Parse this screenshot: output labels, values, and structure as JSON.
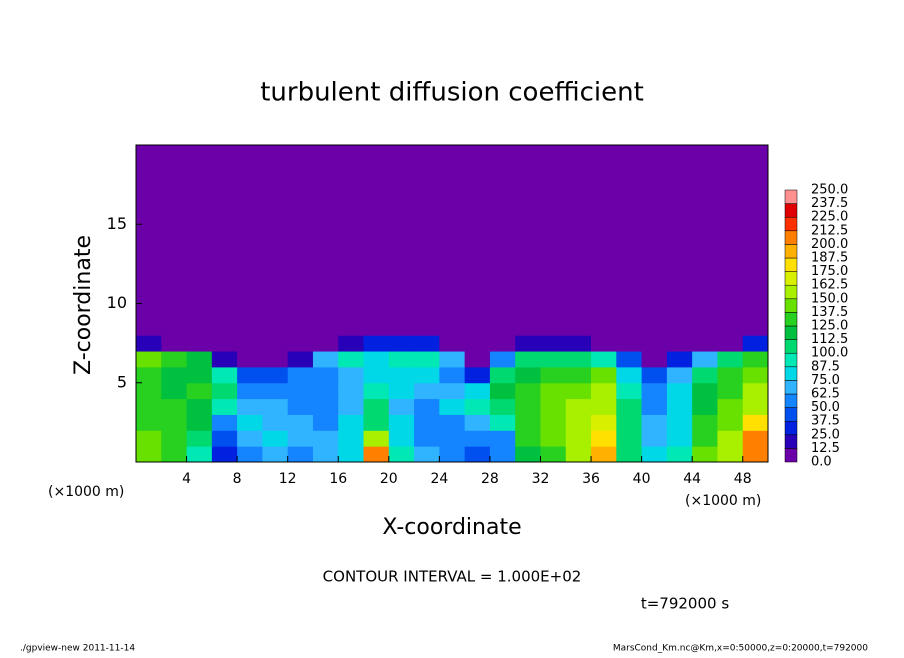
{
  "chart_data": {
    "type": "contour",
    "title": "turbulent diffusion coefficient",
    "x_label": "X-coordinate",
    "y_label": "Z-coordinate",
    "x_unit": "(×1000 m)",
    "xlim": [
      0,
      50
    ],
    "ylim": [
      0,
      20
    ],
    "xticks": [
      4,
      8,
      12,
      16,
      20,
      24,
      28,
      32,
      36,
      40,
      44,
      48
    ],
    "yticks": [
      5,
      10,
      15
    ],
    "x_edges": [
      0,
      2,
      4,
      6,
      8,
      10,
      12,
      14,
      16,
      18,
      20,
      22,
      24,
      26,
      28,
      30,
      32,
      34,
      36,
      38,
      40,
      42,
      44,
      46,
      48,
      50
    ],
    "z_edges": [
      0,
      1,
      2,
      3,
      4,
      5,
      6,
      7,
      8,
      20
    ],
    "z": [
      [
        140,
        130,
        90,
        30,
        60,
        70,
        60,
        70,
        80,
        200,
        90,
        70,
        50,
        40,
        60,
        120,
        130,
        150,
        190,
        110,
        80,
        90,
        140,
        160,
        210
      ],
      [
        140,
        135,
        110,
        40,
        70,
        75,
        70,
        65,
        80,
        150,
        80,
        60,
        50,
        50,
        60,
        125,
        140,
        160,
        175,
        110,
        70,
        80,
        130,
        150,
        200
      ],
      [
        135,
        130,
        120,
        60,
        75,
        70,
        65,
        60,
        75,
        110,
        75,
        55,
        60,
        70,
        90,
        130,
        145,
        160,
        170,
        105,
        65,
        75,
        125,
        145,
        180
      ],
      [
        130,
        125,
        120,
        90,
        70,
        65,
        60,
        55,
        70,
        100,
        70,
        60,
        80,
        90,
        110,
        130,
        140,
        150,
        160,
        100,
        60,
        80,
        120,
        140,
        160
      ],
      [
        130,
        120,
        125,
        110,
        60,
        60,
        55,
        55,
        65,
        90,
        75,
        65,
        70,
        85,
        120,
        130,
        140,
        145,
        150,
        90,
        55,
        85,
        115,
        135,
        150
      ],
      [
        125,
        115,
        120,
        95,
        40,
        45,
        50,
        60,
        70,
        80,
        85,
        80,
        60,
        30,
        100,
        120,
        130,
        135,
        140,
        75,
        45,
        70,
        105,
        125,
        140
      ],
      [
        140,
        130,
        120,
        20,
        5,
        5,
        20,
        70,
        90,
        85,
        95,
        90,
        70,
        10,
        60,
        100,
        105,
        110,
        95,
        40,
        10,
        30,
        70,
        110,
        130
      ],
      [
        20,
        10,
        5,
        0,
        0,
        0,
        0,
        5,
        20,
        30,
        30,
        25,
        10,
        0,
        5,
        15,
        20,
        20,
        10,
        0,
        0,
        0,
        0,
        10,
        30
      ],
      [
        0,
        0,
        0,
        0,
        0,
        0,
        0,
        0,
        0,
        0,
        0,
        0,
        0,
        0,
        0,
        0,
        0,
        0,
        0,
        0,
        0,
        0,
        0,
        0,
        0
      ]
    ],
    "levels": [
      {
        "value": 0,
        "label": "0.0"
      },
      {
        "value": 12.5,
        "label": "12.5"
      },
      {
        "value": 25,
        "label": "25.0"
      },
      {
        "value": 37.5,
        "label": "37.5"
      },
      {
        "value": 50,
        "label": "50.0"
      },
      {
        "value": 62.5,
        "label": "62.5"
      },
      {
        "value": 75,
        "label": "75.0"
      },
      {
        "value": 87.5,
        "label": "87.5"
      },
      {
        "value": 100,
        "label": "100.0"
      },
      {
        "value": 112.5,
        "label": "112.5"
      },
      {
        "value": 125,
        "label": "125.0"
      },
      {
        "value": 137.5,
        "label": "137.5"
      },
      {
        "value": 150,
        "label": "150.0"
      },
      {
        "value": 162.5,
        "label": "162.5"
      },
      {
        "value": 175,
        "label": "175.0"
      },
      {
        "value": 187.5,
        "label": "187.5"
      },
      {
        "value": 200,
        "label": "200.0"
      },
      {
        "value": 212.5,
        "label": "212.5"
      },
      {
        "value": 225,
        "label": "225.0"
      },
      {
        "value": 237.5,
        "label": "237.5"
      },
      {
        "value": 250,
        "label": "250.0"
      }
    ],
    "colors": [
      "#6c00a8",
      "#2800b8",
      "#0022e0",
      "#0050f0",
      "#1484ff",
      "#30b4ff",
      "#00d8e8",
      "#00e8b4",
      "#00d870",
      "#00c040",
      "#28d020",
      "#68e000",
      "#a8f000",
      "#d8f000",
      "#ffe000",
      "#ffb000",
      "#ff8000",
      "#ff3000",
      "#e00000",
      "#ff9090"
    ],
    "contour_interval": "CONTOUR INTERVAL = 1.000E+02",
    "time": "t=792000 s",
    "footer_left": "./gpview-new   2011-11-14",
    "footer_right": "MarsCond_Km.nc@Km,x=0:50000,z=0:20000,t=792000"
  }
}
